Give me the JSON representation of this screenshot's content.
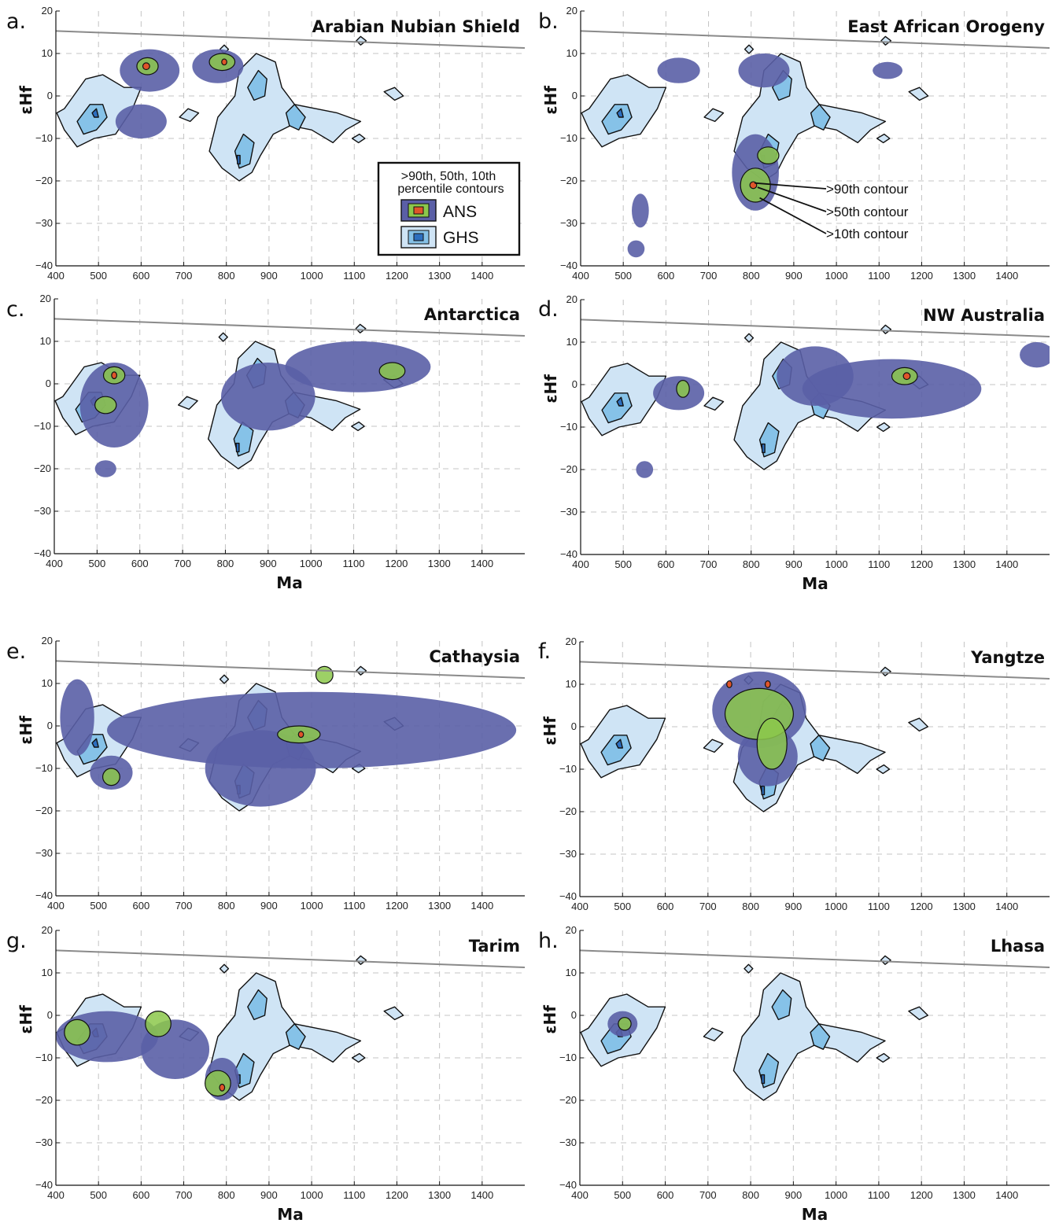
{
  "colors": {
    "ans_outer": "#5a5fa6",
    "ans_mid": "#8cc84b",
    "ans_inner": "#e0552a",
    "ghs_outer": "#cfe4f5",
    "ghs_mid": "#86c2e8",
    "ghs_inner": "#2d6fbf",
    "depleted_mantle": "#8a8a8a",
    "grid": "#c4c4c4"
  },
  "chart_data": [
    {
      "type": "contour",
      "panel": "a.",
      "title": "Arabian Nubian Shield",
      "xlabel": "",
      "ylabel": "εHf",
      "xlim": [
        400,
        1500
      ],
      "ylim": [
        -40,
        20
      ],
      "xticks": [
        "400",
        "500",
        "600",
        "700",
        "800",
        "900",
        "1000",
        "1100",
        "1200",
        "1300",
        "1400"
      ],
      "yticks": [
        "−40",
        "−30",
        "−20",
        "−10",
        "0",
        "10",
        "20"
      ],
      "ans": [
        {
          "x": 620,
          "y": 6,
          "rx": 70,
          "ry": 5,
          "level": "10th"
        },
        {
          "x": 780,
          "y": 7,
          "rx": 60,
          "ry": 4,
          "level": "10th"
        },
        {
          "x": 600,
          "y": -6,
          "rx": 60,
          "ry": 4,
          "level": "10th"
        },
        {
          "x": 615,
          "y": 7,
          "rx": 25,
          "ry": 2,
          "level": "50th"
        },
        {
          "x": 790,
          "y": 8,
          "rx": 30,
          "ry": 2,
          "level": "50th"
        },
        {
          "x": 612,
          "y": 7,
          "rx": 8,
          "ry": 0.8,
          "level": "90th"
        },
        {
          "x": 795,
          "y": 8,
          "rx": 6,
          "ry": 0.7,
          "level": "90th"
        }
      ]
    },
    {
      "type": "contour",
      "panel": "b.",
      "title": "East African Orogeny",
      "xlabel": "",
      "ylabel": "εHf",
      "xlim": [
        400,
        1500
      ],
      "ylim": [
        -40,
        20
      ],
      "xticks": [
        "400",
        "500",
        "600",
        "700",
        "800",
        "900",
        "1000",
        "1100",
        "1200",
        "1300",
        "1400"
      ],
      "yticks": [
        "−40",
        "−30",
        "−20",
        "−10",
        "0",
        "10",
        "20"
      ],
      "ans": [
        {
          "x": 810,
          "y": -18,
          "rx": 55,
          "ry": 9,
          "level": "10th"
        },
        {
          "x": 830,
          "y": 6,
          "rx": 60,
          "ry": 4,
          "level": "10th"
        },
        {
          "x": 630,
          "y": 6,
          "rx": 50,
          "ry": 3,
          "level": "10th"
        },
        {
          "x": 540,
          "y": -27,
          "rx": 20,
          "ry": 4,
          "level": "10th"
        },
        {
          "x": 530,
          "y": -36,
          "rx": 20,
          "ry": 2,
          "level": "10th"
        },
        {
          "x": 1120,
          "y": 6,
          "rx": 35,
          "ry": 2,
          "level": "10th"
        },
        {
          "x": 810,
          "y": -21,
          "rx": 35,
          "ry": 4,
          "level": "50th"
        },
        {
          "x": 840,
          "y": -14,
          "rx": 25,
          "ry": 2,
          "level": "50th"
        },
        {
          "x": 805,
          "y": -21,
          "rx": 8,
          "ry": 0.8,
          "level": "90th"
        }
      ],
      "annotations": [
        ">90th contour",
        ">50th contour",
        ">10th contour"
      ]
    },
    {
      "type": "contour",
      "panel": "c.",
      "title": "Antarctica",
      "xlabel": "Ma",
      "ylabel": "",
      "xlim": [
        400,
        1500
      ],
      "ylim": [
        -40,
        20
      ],
      "xticks": [
        "400",
        "500",
        "600",
        "700",
        "800",
        "900",
        "1000",
        "1100",
        "1200",
        "1300",
        "1400"
      ],
      "yticks": [
        "−40",
        "−30",
        "−20",
        "−10",
        "0",
        "10",
        "20"
      ],
      "ans": [
        {
          "x": 540,
          "y": -5,
          "rx": 80,
          "ry": 10,
          "level": "10th"
        },
        {
          "x": 1110,
          "y": 4,
          "rx": 170,
          "ry": 6,
          "level": "10th"
        },
        {
          "x": 900,
          "y": -3,
          "rx": 110,
          "ry": 8,
          "level": "10th"
        },
        {
          "x": 520,
          "y": -20,
          "rx": 25,
          "ry": 2,
          "level": "10th"
        },
        {
          "x": 540,
          "y": 2,
          "rx": 25,
          "ry": 2,
          "level": "50th"
        },
        {
          "x": 1190,
          "y": 3,
          "rx": 30,
          "ry": 2,
          "level": "50th"
        },
        {
          "x": 520,
          "y": -5,
          "rx": 25,
          "ry": 2,
          "level": "50th"
        },
        {
          "x": 540,
          "y": 2,
          "rx": 6,
          "ry": 0.8,
          "level": "90th"
        }
      ]
    },
    {
      "type": "contour",
      "panel": "d.",
      "title": "NW Australia",
      "xlabel": "Ma",
      "ylabel": "εHf",
      "xlim": [
        400,
        1500
      ],
      "ylim": [
        -40,
        20
      ],
      "xticks": [
        "400",
        "500",
        "600",
        "700",
        "800",
        "900",
        "1000",
        "1100",
        "1200",
        "1300",
        "1400"
      ],
      "yticks": [
        "−40",
        "−30",
        "−20",
        "−10",
        "0",
        "10",
        "20"
      ],
      "ans": [
        {
          "x": 1130,
          "y": -1,
          "rx": 210,
          "ry": 7,
          "level": "10th"
        },
        {
          "x": 950,
          "y": 2,
          "rx": 90,
          "ry": 7,
          "level": "10th"
        },
        {
          "x": 630,
          "y": -2,
          "rx": 60,
          "ry": 4,
          "level": "10th"
        },
        {
          "x": 1470,
          "y": 7,
          "rx": 40,
          "ry": 3,
          "level": "10th"
        },
        {
          "x": 550,
          "y": -20,
          "rx": 20,
          "ry": 2,
          "level": "10th"
        },
        {
          "x": 1160,
          "y": 2,
          "rx": 30,
          "ry": 2,
          "level": "50th"
        },
        {
          "x": 640,
          "y": -1,
          "rx": 15,
          "ry": 2,
          "level": "50th"
        },
        {
          "x": 1165,
          "y": 2,
          "rx": 8,
          "ry": 0.8,
          "level": "90th"
        }
      ]
    },
    {
      "type": "contour",
      "panel": "e.",
      "title": "Cathaysia",
      "xlabel": "",
      "ylabel": "εHf",
      "xlim": [
        400,
        1500
      ],
      "ylim": [
        -40,
        20
      ],
      "xticks": [
        "400",
        "500",
        "600",
        "700",
        "800",
        "900",
        "1000",
        "1100",
        "1200",
        "1300",
        "1400"
      ],
      "yticks": [
        "−40",
        "−30",
        "−20",
        "−10",
        "0",
        "10",
        "20"
      ],
      "ans": [
        {
          "x": 1000,
          "y": -1,
          "rx": 480,
          "ry": 9,
          "level": "10th"
        },
        {
          "x": 880,
          "y": -10,
          "rx": 130,
          "ry": 9,
          "level": "10th"
        },
        {
          "x": 450,
          "y": 2,
          "rx": 40,
          "ry": 9,
          "level": "10th"
        },
        {
          "x": 530,
          "y": -11,
          "rx": 50,
          "ry": 4,
          "level": "10th"
        },
        {
          "x": 970,
          "y": -2,
          "rx": 50,
          "ry": 2,
          "level": "50th"
        },
        {
          "x": 1030,
          "y": 12,
          "rx": 20,
          "ry": 2,
          "level": "50th"
        },
        {
          "x": 530,
          "y": -12,
          "rx": 20,
          "ry": 2,
          "level": "50th"
        },
        {
          "x": 975,
          "y": -2,
          "rx": 6,
          "ry": 0.7,
          "level": "90th"
        }
      ]
    },
    {
      "type": "contour",
      "panel": "f.",
      "title": "Yangtze",
      "xlabel": "",
      "ylabel": "εHf",
      "xlim": [
        400,
        1500
      ],
      "ylim": [
        -40,
        20
      ],
      "xticks": [
        "400",
        "500",
        "600",
        "700",
        "800",
        "900",
        "1000",
        "1100",
        "1200",
        "1300",
        "1400"
      ],
      "yticks": [
        "−40",
        "−30",
        "−20",
        "−10",
        "0",
        "10",
        "20"
      ],
      "ans": [
        {
          "x": 820,
          "y": 4,
          "rx": 110,
          "ry": 9,
          "level": "10th"
        },
        {
          "x": 840,
          "y": -7,
          "rx": 70,
          "ry": 7,
          "level": "10th"
        },
        {
          "x": 820,
          "y": 3,
          "rx": 80,
          "ry": 6,
          "level": "50th"
        },
        {
          "x": 850,
          "y": -4,
          "rx": 35,
          "ry": 6,
          "level": "50th"
        },
        {
          "x": 750,
          "y": 10,
          "rx": 6,
          "ry": 0.8,
          "level": "90th"
        },
        {
          "x": 840,
          "y": 10,
          "rx": 6,
          "ry": 0.8,
          "level": "90th"
        }
      ]
    },
    {
      "type": "contour",
      "panel": "g.",
      "title": "Tarim",
      "xlabel": "Ma",
      "ylabel": "εHf",
      "xlim": [
        400,
        1500
      ],
      "ylim": [
        -40,
        20
      ],
      "xticks": [
        "400",
        "500",
        "600",
        "700",
        "800",
        "900",
        "1000",
        "1100",
        "1200",
        "1300",
        "1400"
      ],
      "yticks": [
        "−40",
        "−30",
        "−20",
        "−10",
        "0",
        "10",
        "20"
      ],
      "ans": [
        {
          "x": 520,
          "y": -5,
          "rx": 120,
          "ry": 6,
          "level": "10th"
        },
        {
          "x": 680,
          "y": -8,
          "rx": 80,
          "ry": 7,
          "level": "10th"
        },
        {
          "x": 790,
          "y": -15,
          "rx": 40,
          "ry": 5,
          "level": "10th"
        },
        {
          "x": 450,
          "y": -4,
          "rx": 30,
          "ry": 3,
          "level": "50th"
        },
        {
          "x": 640,
          "y": -2,
          "rx": 30,
          "ry": 3,
          "level": "50th"
        },
        {
          "x": 780,
          "y": -16,
          "rx": 30,
          "ry": 3,
          "level": "50th"
        },
        {
          "x": 790,
          "y": -17,
          "rx": 6,
          "ry": 0.8,
          "level": "90th"
        }
      ]
    },
    {
      "type": "contour",
      "panel": "h.",
      "title": "Lhasa",
      "xlabel": "Ma",
      "ylabel": "εHf",
      "xlim": [
        400,
        1500
      ],
      "ylim": [
        -40,
        20
      ],
      "xticks": [
        "400",
        "500",
        "600",
        "700",
        "800",
        "900",
        "1000",
        "1100",
        "1200",
        "1300",
        "1400"
      ],
      "yticks": [
        "−40",
        "−30",
        "−20",
        "−10",
        "0",
        "10",
        "20"
      ],
      "ans": [
        {
          "x": 500,
          "y": -2,
          "rx": 35,
          "ry": 3,
          "level": "10th"
        },
        {
          "x": 505,
          "y": -2,
          "rx": 15,
          "ry": 1.5,
          "level": "50th"
        }
      ]
    }
  ],
  "legend": {
    "title_line1": ">90th, 50th, 10th",
    "title_line2": "percentile contours",
    "entries": [
      "ANS",
      "GHS"
    ]
  }
}
